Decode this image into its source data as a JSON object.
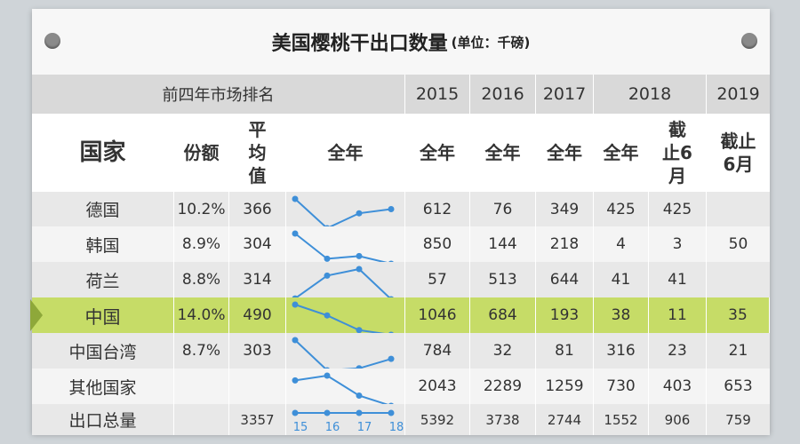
{
  "title": {
    "main": "美国樱桃干出口数量",
    "unit": "(单位：千磅)"
  },
  "header_top": {
    "ranking": "前四年市场排名",
    "years": [
      "2015",
      "2016",
      "2017",
      "2018",
      "2019"
    ]
  },
  "header_sub": {
    "country": "国家",
    "share": "份额",
    "avg": "平均值",
    "full_year_spark": "全年",
    "y2015": "全年",
    "y2016": "全年",
    "y2017": "全年",
    "y2018a": "全年",
    "y2018b": "截止6月",
    "y2019": "截止6月"
  },
  "rows": [
    {
      "country": "德国",
      "share": "10.2%",
      "avg": "366",
      "trend": [
        612,
        76,
        349,
        425
      ],
      "v2015": "612",
      "v2016": "76",
      "v2017": "349",
      "v2018": "425",
      "v2018h": "425",
      "v2019h": ""
    },
    {
      "country": "韩国",
      "share": "8.9%",
      "avg": "304",
      "trend": [
        850,
        144,
        218,
        4
      ],
      "v2015": "850",
      "v2016": "144",
      "v2017": "218",
      "v2018": "4",
      "v2018h": "3",
      "v2019h": "50"
    },
    {
      "country": "荷兰",
      "share": "8.8%",
      "avg": "314",
      "trend": [
        57,
        513,
        644,
        41
      ],
      "v2015": "57",
      "v2016": "513",
      "v2017": "644",
      "v2018": "41",
      "v2018h": "41",
      "v2019h": ""
    },
    {
      "country": "中国",
      "share": "14.0%",
      "avg": "490",
      "trend": [
        1046,
        684,
        193,
        38
      ],
      "v2015": "1046",
      "v2016": "684",
      "v2017": "193",
      "v2018": "38",
      "v2018h": "11",
      "v2019h": "35"
    },
    {
      "country": "中国台湾",
      "share": "8.7%",
      "avg": "303",
      "trend": [
        784,
        32,
        81,
        316
      ],
      "v2015": "784",
      "v2016": "32",
      "v2017": "81",
      "v2018": "316",
      "v2018h": "23",
      "v2019h": "21"
    },
    {
      "country": "其他国家",
      "share": "",
      "avg": "",
      "trend": [
        2043,
        2289,
        1259,
        730
      ],
      "v2015": "2043",
      "v2016": "2289",
      "v2017": "1259",
      "v2018": "730",
      "v2018h": "403",
      "v2019h": "653"
    },
    {
      "country": "出口总量",
      "share": "",
      "avg": "3357",
      "trend": [],
      "v2015": "5392",
      "v2016": "3738",
      "v2017": "2744",
      "v2018": "1552",
      "v2018h": "906",
      "v2019h": "759"
    }
  ],
  "spark_year_labels": [
    "15",
    "16",
    "17",
    "18"
  ],
  "colors": {
    "accent": "#3e8fd8",
    "highlight": "#c6dc67",
    "marker": "#8ea83a"
  }
}
